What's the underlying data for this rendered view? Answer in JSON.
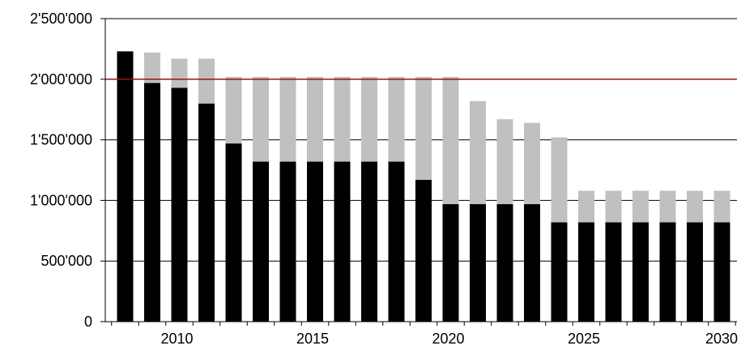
{
  "chart_data": {
    "type": "bar",
    "stacked": true,
    "x": [
      2008,
      2009,
      2010,
      2011,
      2012,
      2013,
      2014,
      2015,
      2016,
      2017,
      2018,
      2019,
      2020,
      2021,
      2022,
      2023,
      2024,
      2025,
      2026,
      2027,
      2028,
      2029,
      2030
    ],
    "series": [
      {
        "color": "#000000",
        "values": [
          2230000,
          1970000,
          1930000,
          1800000,
          1470000,
          1320000,
          1320000,
          1320000,
          1320000,
          1320000,
          1320000,
          1170000,
          970000,
          970000,
          970000,
          970000,
          820000,
          820000,
          820000,
          820000,
          820000,
          820000,
          820000
        ]
      },
      {
        "color": "#c0c0c0",
        "values": [
          0,
          250000,
          240000,
          370000,
          550000,
          700000,
          700000,
          700000,
          700000,
          700000,
          700000,
          850000,
          1050000,
          850000,
          700000,
          670000,
          700000,
          260000,
          260000,
          260000,
          260000,
          260000,
          260000
        ]
      }
    ],
    "reference_line": {
      "value": 2000000,
      "color": "#c00000"
    },
    "x_tick_labels": [
      "2010",
      "2015",
      "2020",
      "2025",
      "2030"
    ],
    "x_tick_values": [
      2010,
      2015,
      2020,
      2025,
      2030
    ],
    "y_tick_labels": [
      "0",
      "500'000",
      "1'000'000",
      "1'500'000",
      "2'000'000",
      "2'500'000"
    ],
    "y_tick_values": [
      0,
      500000,
      1000000,
      1500000,
      2000000,
      2500000
    ],
    "ylim": [
      0,
      2500000
    ],
    "grid": true,
    "title": "",
    "xlabel": "",
    "ylabel": ""
  }
}
